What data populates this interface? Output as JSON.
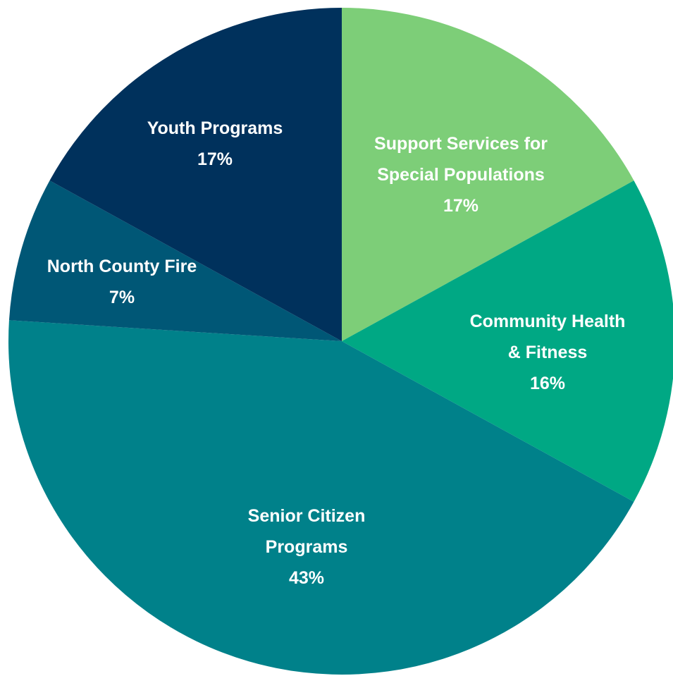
{
  "chart_data": {
    "type": "pie",
    "title": "",
    "start": "top",
    "direction": "clockwise",
    "slices": [
      {
        "label_lines": [
          "Support Services for",
          "Special Populations"
        ],
        "value": 17,
        "display": "17%",
        "color": "#7dce78"
      },
      {
        "label_lines": [
          "Community Health",
          "& Fitness"
        ],
        "value": 16,
        "display": "16%",
        "color": "#00a884"
      },
      {
        "label_lines": [
          "Senior Citizen",
          "Programs"
        ],
        "value": 43,
        "display": "43%",
        "color": "#00818a"
      },
      {
        "label_lines": [
          "North County Fire"
        ],
        "value": 7,
        "display": "7%",
        "color": "#005776"
      },
      {
        "label_lines": [
          "Youth Programs"
        ],
        "value": 17,
        "display": "17%",
        "color": "#00315c"
      }
    ]
  }
}
